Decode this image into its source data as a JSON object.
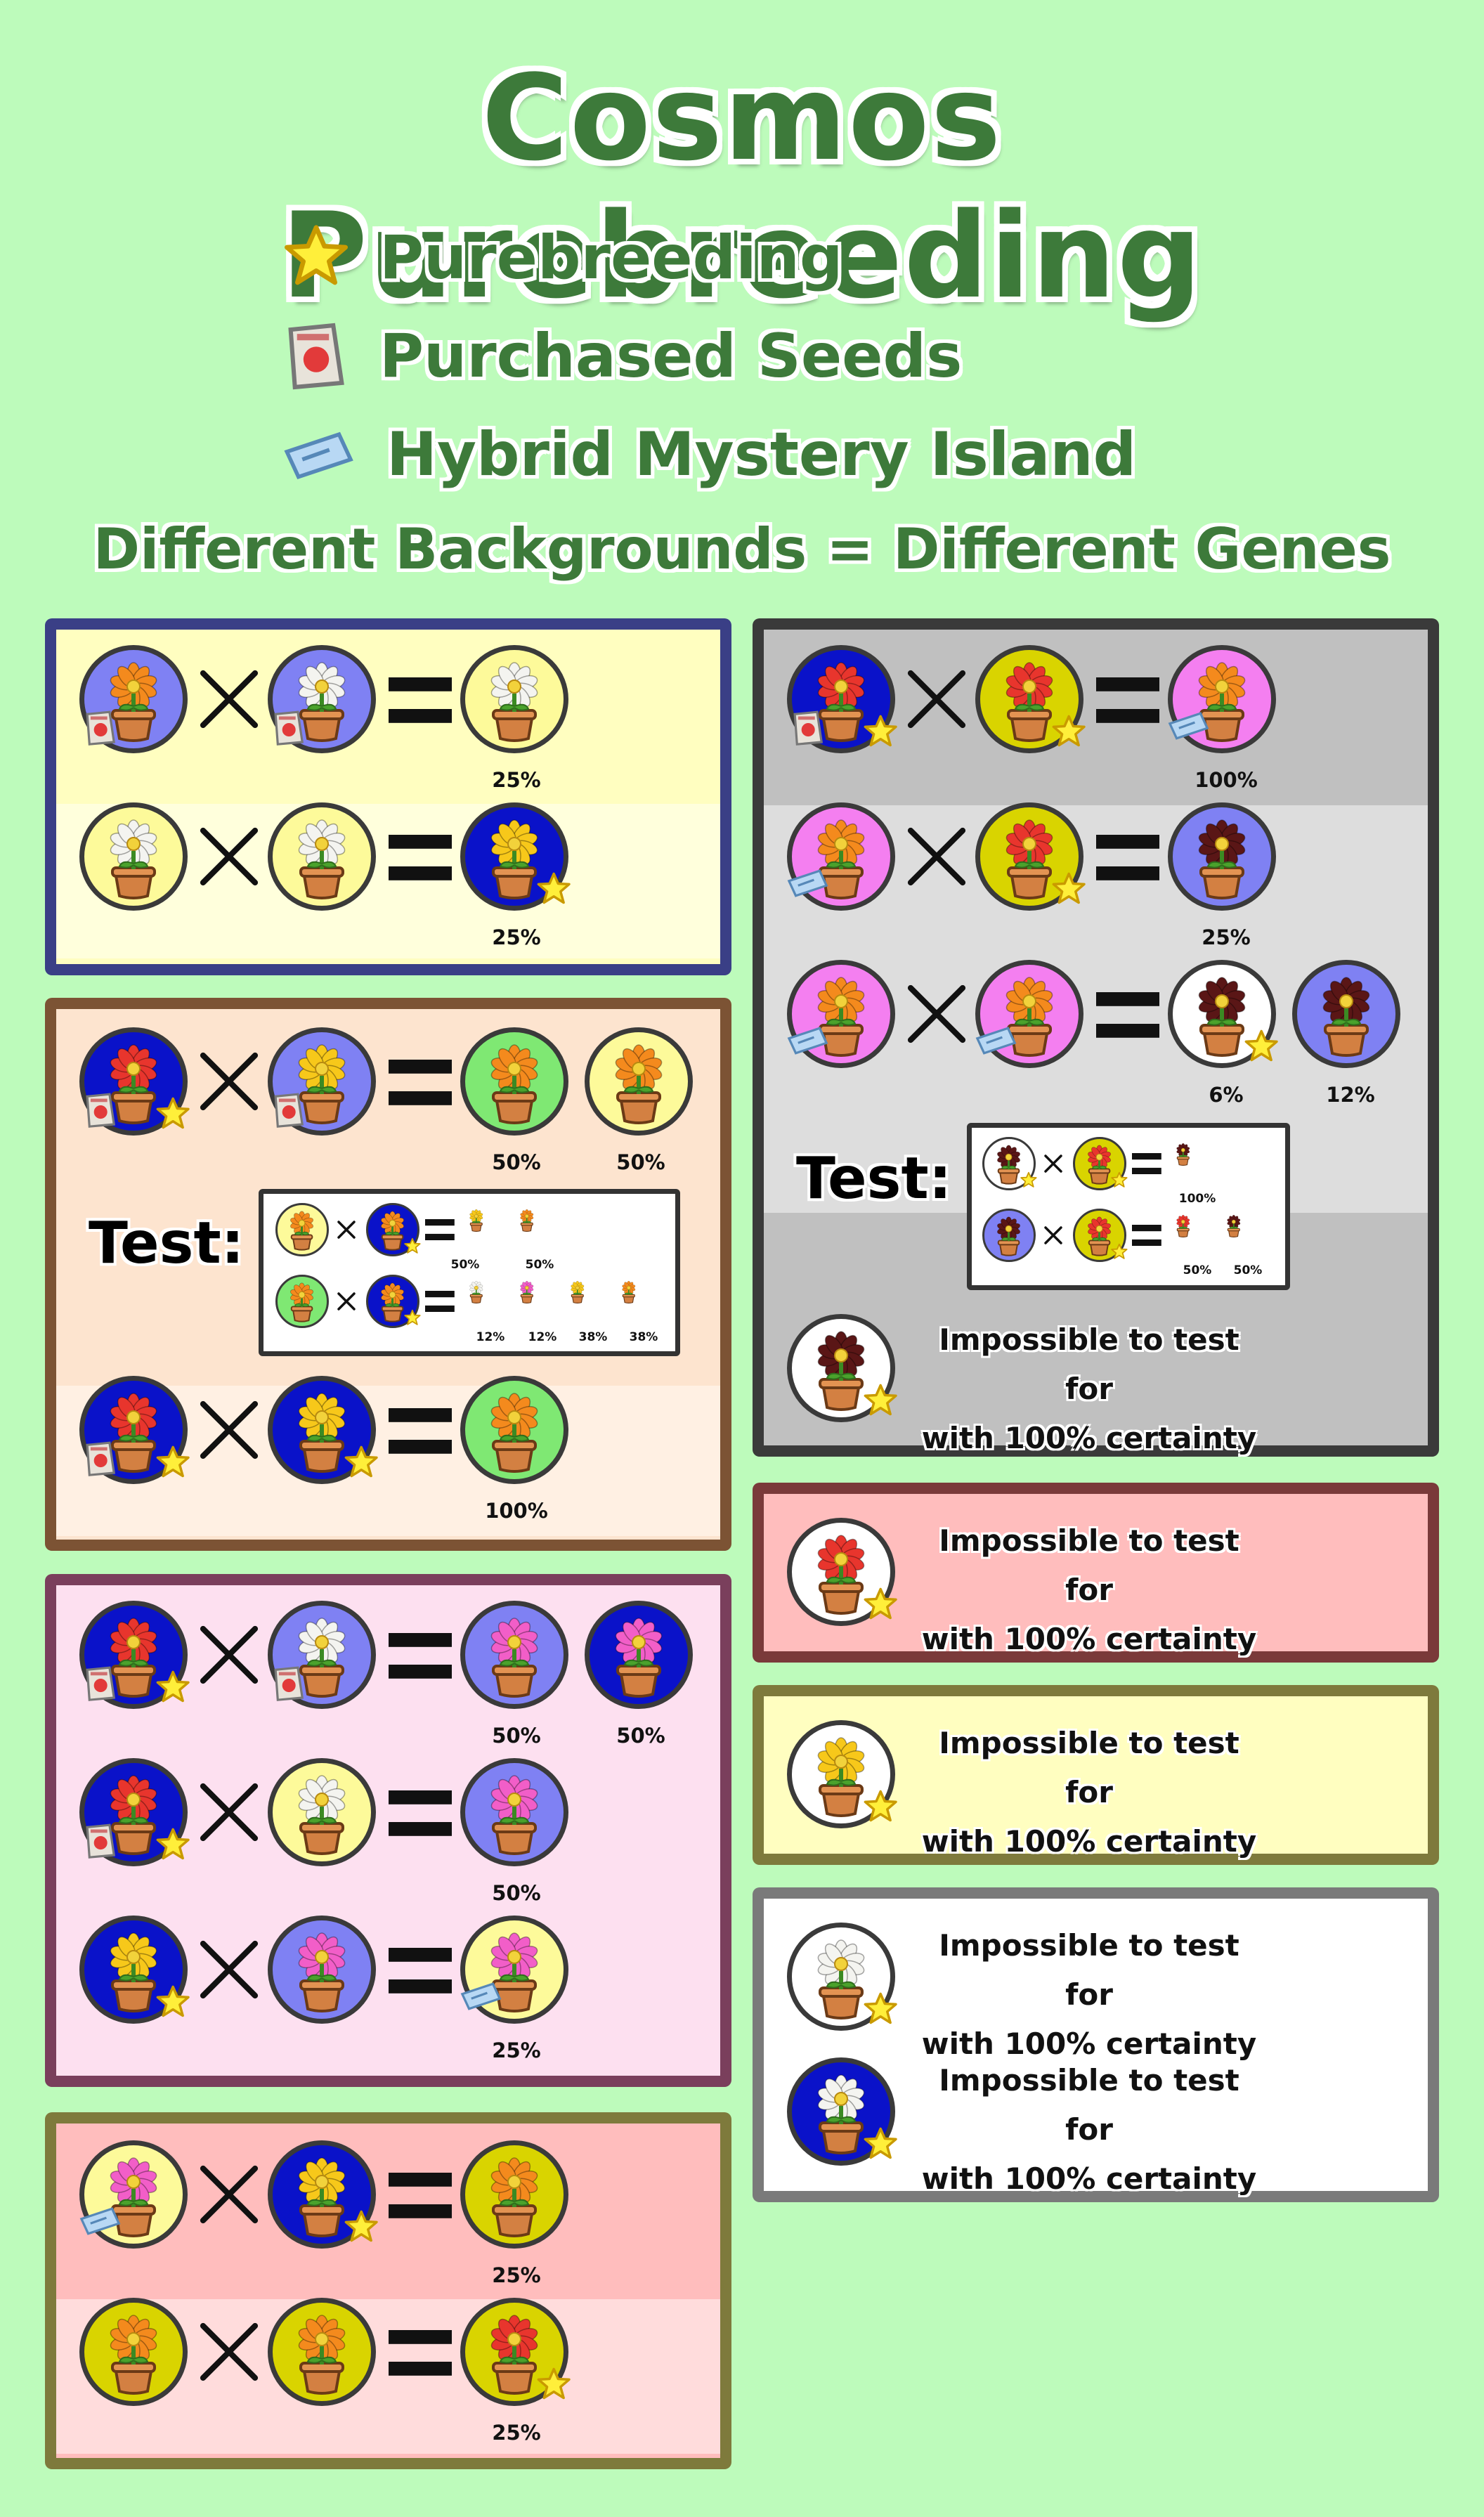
{
  "title": "Cosmos Purebreeding",
  "legend": {
    "purebreeding": "Purebreeding",
    "purchased": "Purchased Seeds",
    "hybrid": "Hybrid Mystery Island"
  },
  "subtitle": "Different Backgrounds = Different Genes",
  "colors": {
    "page_bg": "#bdfbbb",
    "title": "#3d7a3a",
    "bg_blue": "#7f81f3",
    "bg_yellow": "#fdfa9a",
    "bg_navy": "#0a12c9",
    "bg_green": "#7fe873",
    "bg_mustard": "#d9d400",
    "bg_pink": "#f47ff0",
    "bg_white": "#ffffff"
  },
  "yellow_panel": {
    "pct_1": "25%",
    "pct_2": "25%"
  },
  "orange_panel": {
    "pct_1a": "50%",
    "pct_1b": "50%",
    "test_label": "Test:",
    "test_pct": [
      "50%",
      "50%",
      "12%",
      "12%",
      "38%",
      "38%"
    ],
    "pct_2": "100%"
  },
  "pink_panel": {
    "pct_1a": "50%",
    "pct_1b": "50%",
    "pct_2": "50%",
    "pct_3": "25%"
  },
  "red_panel": {
    "pct_1": "25%",
    "pct_2": "25%"
  },
  "gray_panel": {
    "pct_1": "100%",
    "pct_2": "25%",
    "pct_3a": "6%",
    "pct_3b": "12%",
    "test_label": "Test:",
    "test_pct": [
      "100%",
      "50%",
      "50%"
    ],
    "impossible_1": "Impossible to test for",
    "impossible_2": "with 100% certainty"
  },
  "red_side_panel": {
    "impossible_1": "Impossible to test for",
    "impossible_2": "with 100% certainty"
  },
  "yellow_side_panel": {
    "impossible_1": "Impossible to test for",
    "impossible_2": "with 100% certainty"
  },
  "white_side_panel": {
    "impossible_1": "Impossible to test for",
    "impossible_2": "with 100% certainty",
    "impossible_3": "Impossible to test for",
    "impossible_4": "with 100% certainty"
  }
}
